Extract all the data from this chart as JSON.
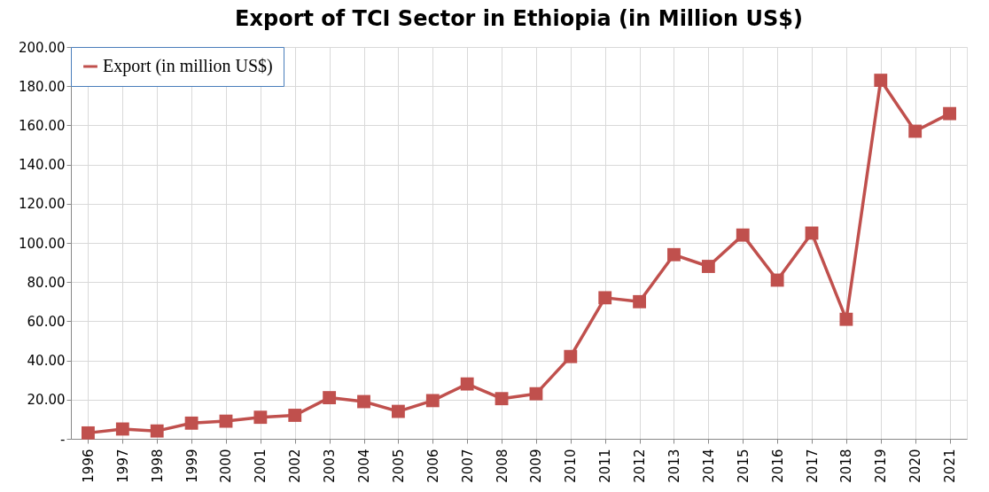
{
  "chart_data": {
    "type": "line",
    "title": "Export of TCI Sector in Ethiopia (in Million US$)",
    "categories": [
      "1996",
      "1997",
      "1998",
      "1999",
      "2000",
      "2001",
      "2002",
      "2003",
      "2004",
      "2005",
      "2006",
      "2007",
      "2008",
      "2009",
      "2010",
      "2011",
      "2012",
      "2013",
      "2014",
      "2015",
      "2016",
      "2017",
      "2018",
      "2019",
      "2020",
      "2021"
    ],
    "series": [
      {
        "name": "Export (in million US$)",
        "color": "#c0504d",
        "values": [
          3,
          5,
          4,
          8,
          9,
          11,
          12,
          21,
          19,
          14,
          19.5,
          28,
          20.5,
          23,
          42,
          72,
          70,
          94,
          88,
          104,
          81,
          105,
          61,
          183,
          157,
          166
        ]
      }
    ],
    "ylim": [
      0,
      200
    ],
    "yticks": [
      {
        "value": 0,
        "label": "-"
      },
      {
        "value": 20,
        "label": "20.00"
      },
      {
        "value": 40,
        "label": "40.00"
      },
      {
        "value": 60,
        "label": "60.00"
      },
      {
        "value": 80,
        "label": "80.00"
      },
      {
        "value": 100,
        "label": "100.00"
      },
      {
        "value": 120,
        "label": "120.00"
      },
      {
        "value": 140,
        "label": "140.00"
      },
      {
        "value": 160,
        "label": "160.00"
      },
      {
        "value": 180,
        "label": "180.00"
      },
      {
        "value": 200,
        "label": "200.00"
      }
    ],
    "grid": true,
    "legend": "top left",
    "marker": "square",
    "line_style": "solid"
  }
}
